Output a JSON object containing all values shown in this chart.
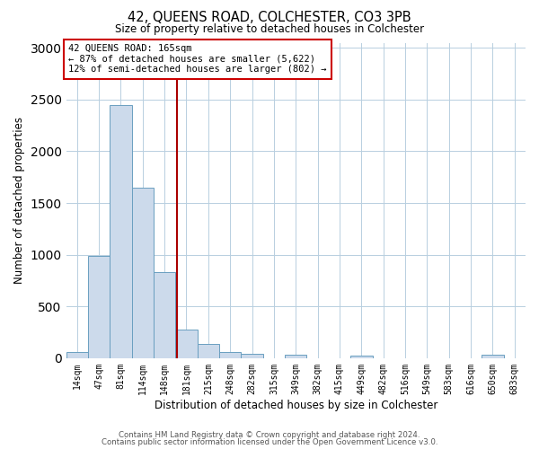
{
  "title": "42, QUEENS ROAD, COLCHESTER, CO3 3PB",
  "subtitle": "Size of property relative to detached houses in Colchester",
  "xlabel": "Distribution of detached houses by size in Colchester",
  "ylabel": "Number of detached properties",
  "bar_labels": [
    "14sqm",
    "47sqm",
    "81sqm",
    "114sqm",
    "148sqm",
    "181sqm",
    "215sqm",
    "248sqm",
    "282sqm",
    "315sqm",
    "349sqm",
    "382sqm",
    "415sqm",
    "449sqm",
    "482sqm",
    "516sqm",
    "549sqm",
    "583sqm",
    "616sqm",
    "650sqm",
    "683sqm"
  ],
  "bar_values": [
    55,
    985,
    2450,
    1650,
    830,
    280,
    135,
    55,
    40,
    0,
    30,
    0,
    0,
    22,
    0,
    0,
    0,
    0,
    0,
    30,
    0
  ],
  "bar_color": "#ccdaeb",
  "bar_edgecolor": "#6a9fc0",
  "vertical_line_x": 4.57,
  "annotation_title": "42 QUEENS ROAD: 165sqm",
  "annotation_line1": "← 87% of detached houses are smaller (5,622)",
  "annotation_line2": "12% of semi-detached houses are larger (802) →",
  "annotation_box_edgecolor": "#cc0000",
  "vline_color": "#aa0000",
  "footer1": "Contains HM Land Registry data © Crown copyright and database right 2024.",
  "footer2": "Contains public sector information licensed under the Open Government Licence v3.0.",
  "ylim": [
    0,
    3050
  ],
  "background_color": "#ffffff",
  "grid_color": "#b8cfe0"
}
